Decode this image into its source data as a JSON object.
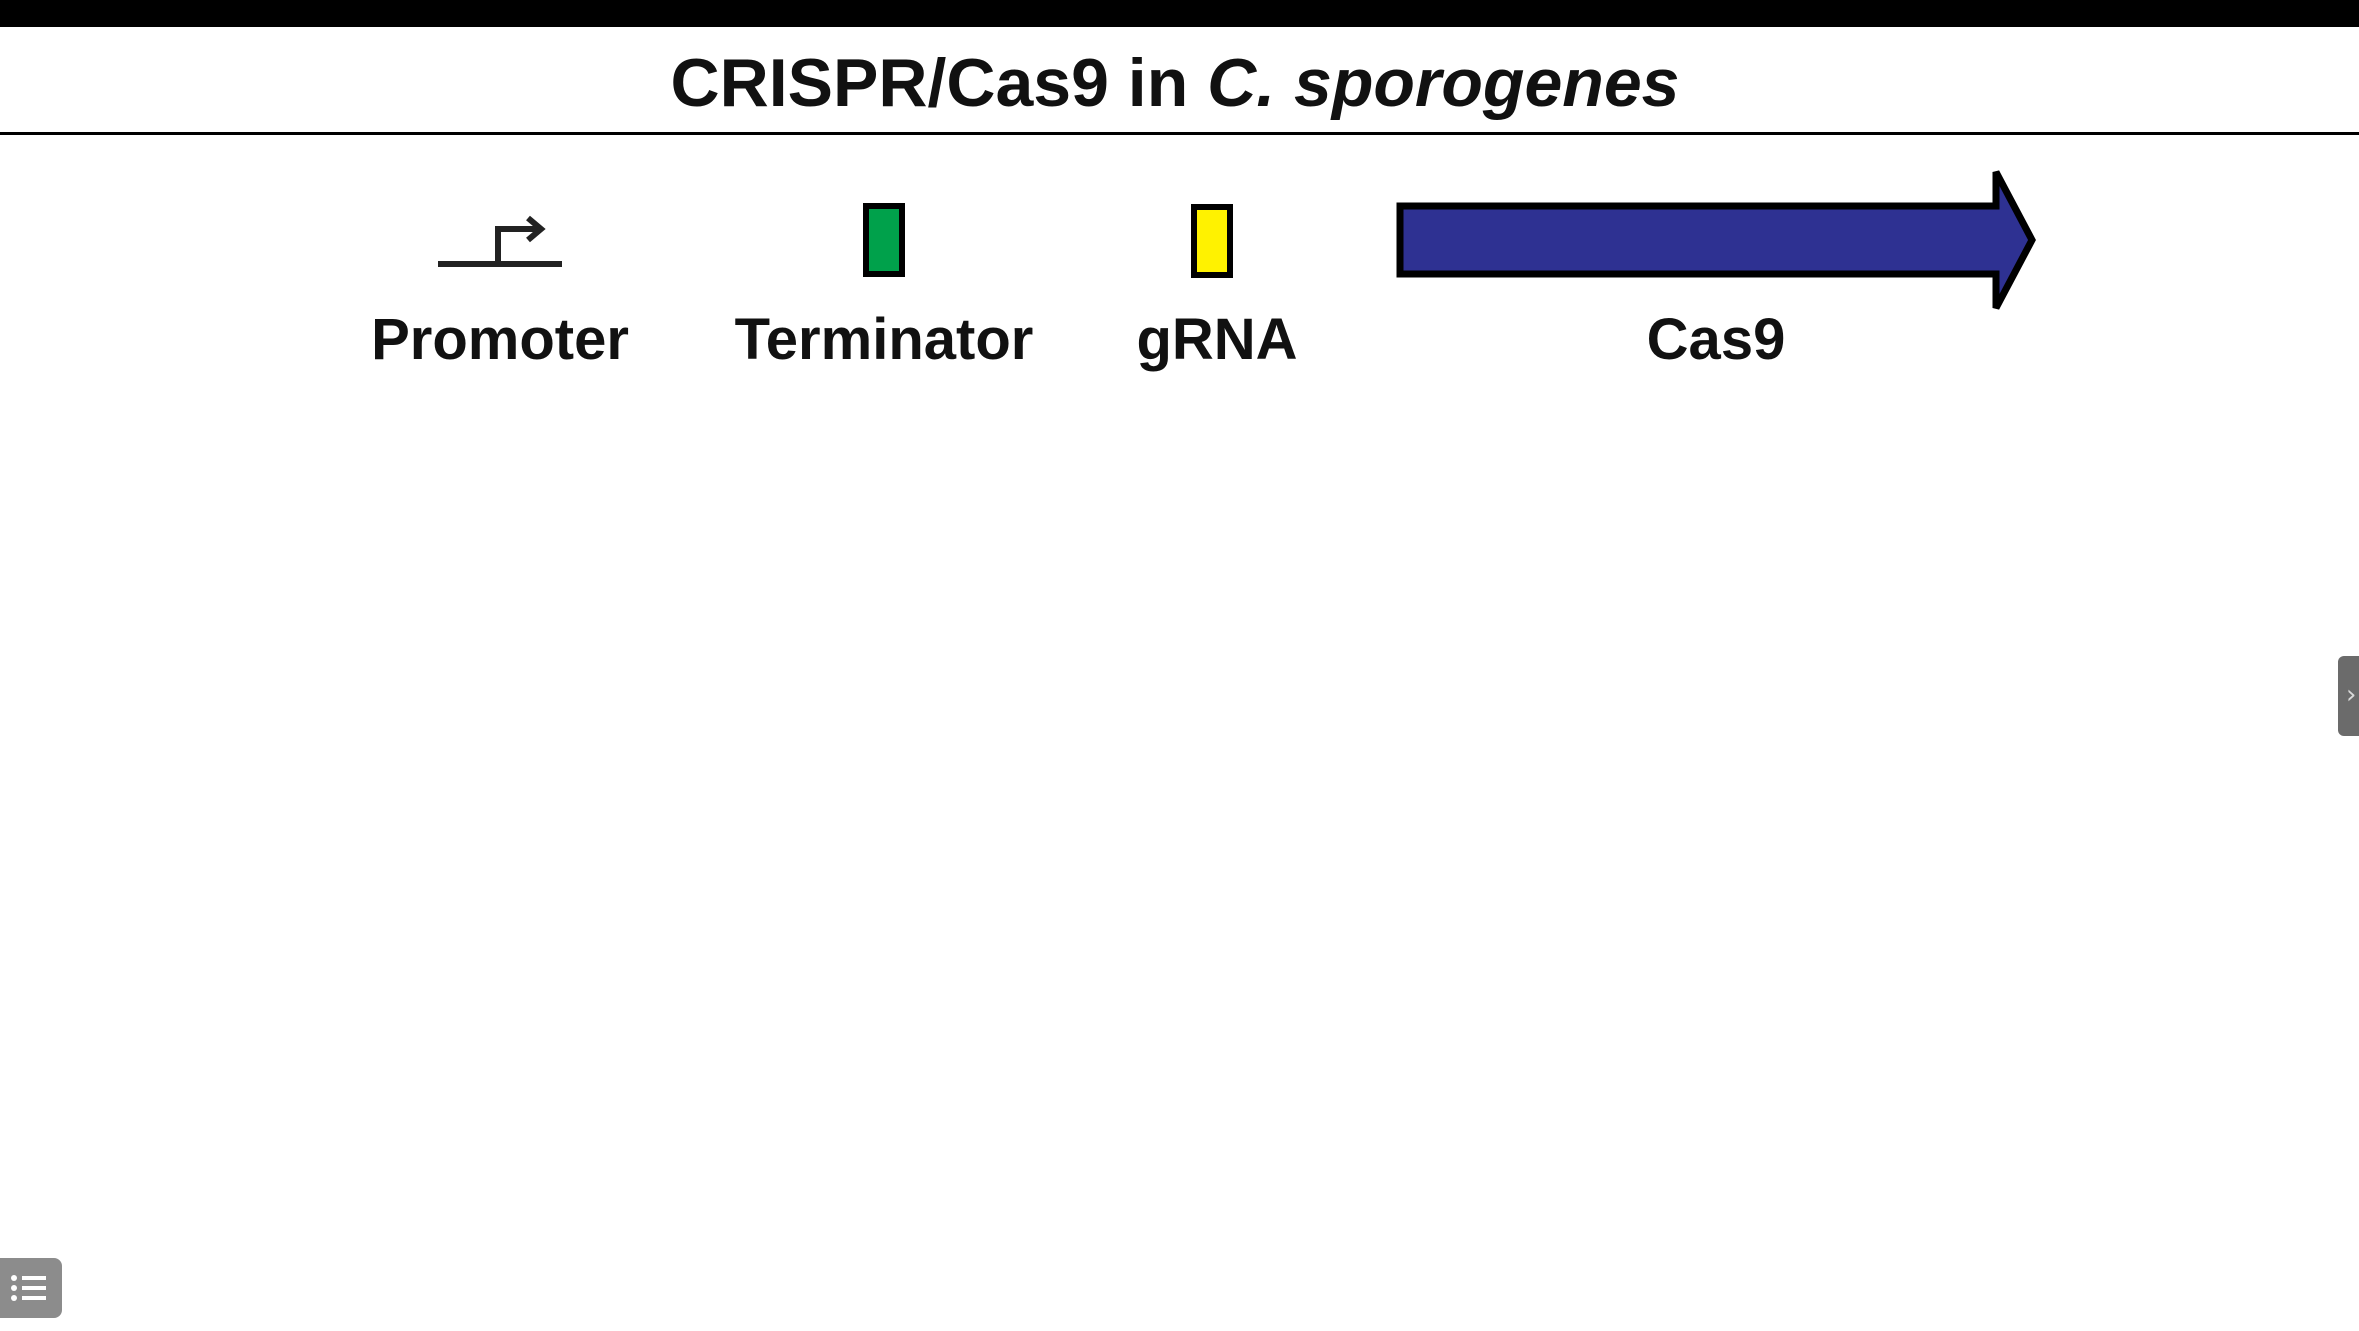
{
  "slide": {
    "title_plain": "CRISPR/Cas9 in ",
    "title_italic": "C. sporogenes"
  },
  "legend": {
    "items": [
      {
        "label": "Promoter",
        "icon": "promoter-arrow-icon"
      },
      {
        "label": "Terminator",
        "icon": "terminator-box-icon",
        "color": "#00A14B"
      },
      {
        "label": "gRNA",
        "icon": "grna-box-icon",
        "color": "#FFF200"
      },
      {
        "label": "Cas9",
        "icon": "cas9-arrow-icon",
        "color": "#2E3192"
      }
    ]
  },
  "controls": {
    "side_handle_icon": "chevron-right-icon",
    "list_button_icon": "list-icon",
    "side_handle_glyph": "›"
  },
  "colors": {
    "top_bar": "#000000",
    "text": "#111111",
    "handle": "#6b6b6b",
    "list_button": "#8c8c8c"
  }
}
